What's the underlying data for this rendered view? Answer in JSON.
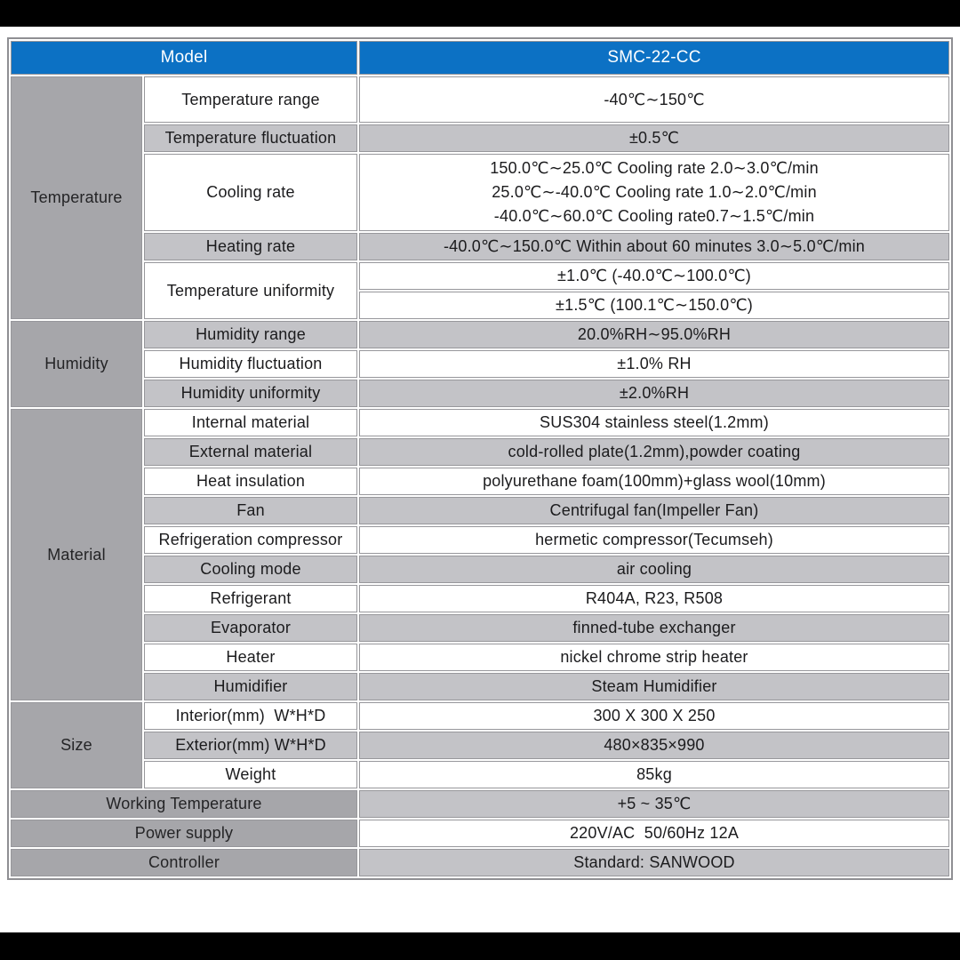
{
  "header": {
    "model_label": "Model",
    "model_value": "SMC-22-CC"
  },
  "sections": {
    "temperature": {
      "category": "Temperature",
      "range": {
        "label": "Temperature range",
        "value": "-40℃∼150℃"
      },
      "fluctuation": {
        "label": "Temperature fluctuation",
        "value": "±0.5℃"
      },
      "cooling": {
        "label": "Cooling rate",
        "lines": [
          "150.0℃∼25.0℃ Cooling rate 2.0∼3.0℃/min",
          "25.0℃∼-40.0℃ Cooling rate 1.0∼2.0℃/min",
          "-40.0℃∼60.0℃ Cooling rate0.7∼1.5℃/min"
        ]
      },
      "heating": {
        "label": "Heating rate",
        "value": "-40.0℃∼150.0℃ Within about 60 minutes 3.0∼5.0℃/min"
      },
      "uniformity": {
        "label": "Temperature uniformity",
        "value1": "±1.0℃ (-40.0℃∼100.0℃)",
        "value2": "±1.5℃ (100.1℃∼150.0℃)"
      }
    },
    "humidity": {
      "category": "Humidity",
      "range": {
        "label": "Humidity range",
        "value": "20.0%RH∼95.0%RH"
      },
      "fluctuation": {
        "label": "Humidity fluctuation",
        "value": "±1.0% RH"
      },
      "uniformity": {
        "label": "Humidity uniformity",
        "value": "±2.0%RH"
      }
    },
    "material": {
      "category": "Material",
      "rows": [
        {
          "label": "Internal material",
          "value": "SUS304 stainless steel(1.2mm)"
        },
        {
          "label": "External material",
          "value": "cold-rolled plate(1.2mm),powder coating"
        },
        {
          "label": "Heat insulation",
          "value": "polyurethane foam(100mm)+glass wool(10mm)"
        },
        {
          "label": "Fan",
          "value": "Centrifugal fan(Impeller Fan)"
        },
        {
          "label": "Refrigeration compressor",
          "value": "hermetic compressor(Tecumseh)"
        },
        {
          "label": "Cooling mode",
          "value": "air cooling"
        },
        {
          "label": "Refrigerant",
          "value": "R404A, R23, R508"
        },
        {
          "label": "Evaporator",
          "value": "finned-tube exchanger"
        },
        {
          "label": "Heater",
          "value": "nickel chrome strip heater"
        },
        {
          "label": "Humidifier",
          "value": "Steam Humidifier"
        }
      ]
    },
    "size": {
      "category": "Size",
      "rows": [
        {
          "label": "Interior(mm)  W*H*D",
          "value": "300 X 300 X 250"
        },
        {
          "label": "Exterior(mm) W*H*D",
          "value": "480×835×990"
        },
        {
          "label": "Weight",
          "value": "85kg"
        }
      ]
    }
  },
  "footer_rows": [
    {
      "label": "Working Temperature",
      "value": "+5 ~ 35℃"
    },
    {
      "label": "Power supply",
      "value": "220V/AC  50/60Hz 12A"
    },
    {
      "label": "Controller",
      "value": "Standard: SANWOOD"
    }
  ],
  "colors": {
    "header_bg": "#0c71c4",
    "header_text": "#ffffff",
    "category_gray": "#a6a6aa",
    "row_gray": "#c3c3c7",
    "row_white": "#ffffff",
    "border_gray": "#97979b",
    "frame_black": "#000000"
  }
}
